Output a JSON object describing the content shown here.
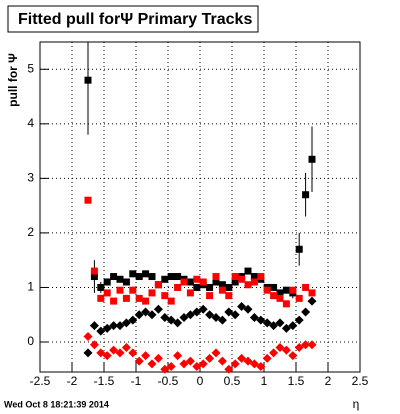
{
  "chart_data": {
    "type": "scatter",
    "title": "Fitted pull forΨ   Primary Tracks",
    "ylabel": "pull for Ψ",
    "xlabel": "η",
    "footer": "Wed Oct  8 18:21:39 2014",
    "x": [
      -1.75,
      -1.65,
      -1.55,
      -1.45,
      -1.35,
      -1.25,
      -1.15,
      -1.05,
      -0.95,
      -0.85,
      -0.75,
      -0.65,
      -0.55,
      -0.45,
      -0.35,
      -0.25,
      -0.15,
      -0.05,
      0.05,
      0.15,
      0.25,
      0.35,
      0.45,
      0.55,
      0.65,
      0.75,
      0.85,
      0.95,
      1.05,
      1.15,
      1.25,
      1.35,
      1.45,
      1.55,
      1.65,
      1.75
    ],
    "series": [
      {
        "color": "#000000",
        "marker": "square",
        "values": [
          4.8,
          1.2,
          1.0,
          1.1,
          1.2,
          1.15,
          1.1,
          1.25,
          1.2,
          1.25,
          1.2,
          1.05,
          1.15,
          1.2,
          1.2,
          1.15,
          1.1,
          1.0,
          1.05,
          1.0,
          1.1,
          1.05,
          1.0,
          1.1,
          1.2,
          1.3,
          1.2,
          1.15,
          1.0,
          1.0,
          0.9,
          0.95,
          0.9,
          1.7,
          2.7,
          3.35
        ],
        "errors": [
          1.0,
          0.3,
          0.1,
          0.05,
          0.05,
          0.05,
          0.05,
          0.05,
          0.05,
          0.05,
          0.05,
          0.05,
          0.05,
          0.05,
          0.05,
          0.05,
          0.05,
          0.05,
          0.05,
          0.05,
          0.05,
          0.05,
          0.05,
          0.05,
          0.05,
          0.05,
          0.05,
          0.05,
          0.05,
          0.05,
          0.05,
          0.05,
          0.1,
          0.3,
          0.4,
          0.6
        ]
      },
      {
        "color": "#ff0000",
        "marker": "square",
        "values": [
          2.6,
          1.3,
          0.8,
          0.9,
          0.75,
          0.95,
          0.8,
          0.95,
          0.8,
          0.75,
          0.9,
          1.05,
          0.85,
          0.75,
          1.0,
          1.1,
          0.9,
          1.15,
          1.1,
          0.85,
          1.2,
          0.95,
          0.85,
          1.2,
          1.15,
          1.05,
          1.1,
          1.2,
          0.95,
          0.85,
          0.8,
          0.7,
          0.95,
          0.8,
          1.0,
          0.9
        ]
      },
      {
        "color": "#000000",
        "marker": "diamond",
        "values": [
          -0.2,
          0.3,
          0.2,
          0.25,
          0.3,
          0.3,
          0.35,
          0.4,
          0.5,
          0.55,
          0.5,
          0.6,
          0.45,
          0.4,
          0.35,
          0.45,
          0.5,
          0.55,
          0.6,
          0.5,
          0.45,
          0.4,
          0.55,
          0.5,
          0.65,
          0.6,
          0.45,
          0.4,
          0.35,
          0.3,
          0.35,
          0.25,
          0.3,
          0.4,
          0.55,
          0.75
        ]
      },
      {
        "color": "#ff0000",
        "marker": "diamond",
        "values": [
          0.1,
          -0.05,
          -0.2,
          -0.25,
          -0.15,
          -0.2,
          -0.1,
          -0.2,
          -0.35,
          -0.25,
          -0.4,
          -0.3,
          -0.5,
          -0.45,
          -0.25,
          -0.4,
          -0.35,
          -0.45,
          -0.4,
          -0.3,
          -0.2,
          -0.35,
          -0.5,
          -0.4,
          -0.3,
          -0.35,
          -0.4,
          -0.45,
          -0.3,
          -0.2,
          -0.1,
          -0.15,
          -0.25,
          -0.1,
          -0.05,
          -0.05
        ]
      }
    ],
    "xlim": [
      -2.5,
      2.5
    ],
    "xticks": [
      -2.5,
      -2,
      -1.5,
      -1,
      -0.5,
      0,
      0.5,
      1,
      1.5,
      2,
      2.5
    ],
    "ylim": [
      -0.55,
      5.5
    ],
    "yticks": [
      0,
      1,
      2,
      3,
      4,
      5
    ],
    "grid": true
  }
}
